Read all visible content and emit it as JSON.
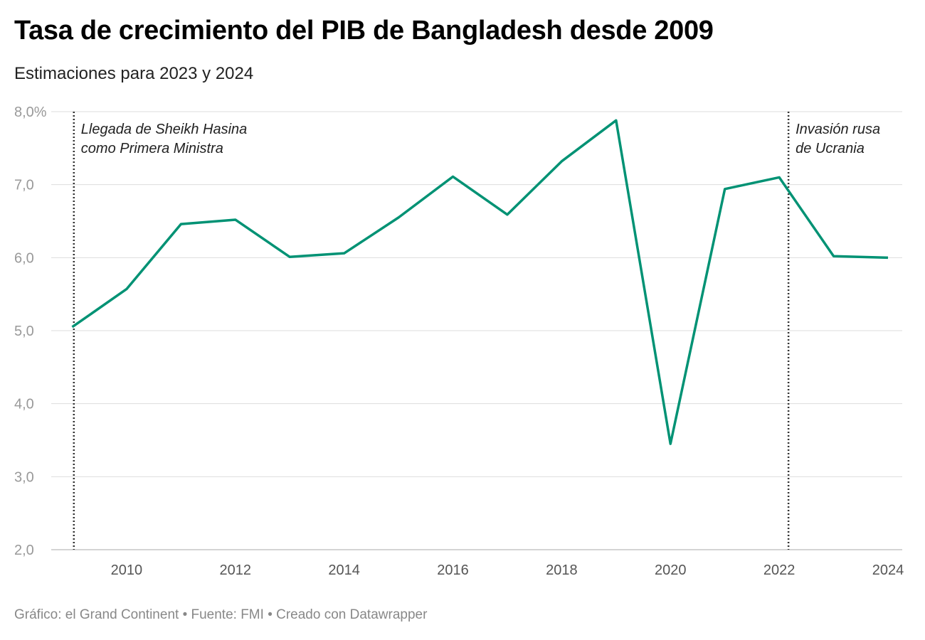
{
  "chart_data": {
    "type": "line",
    "title": "Tasa de crecimiento del PIB de Bangladesh desde 2009",
    "subtitle": "Estimaciones para 2023 y 2024",
    "x": [
      2009,
      2010,
      2011,
      2012,
      2013,
      2014,
      2015,
      2016,
      2017,
      2018,
      2019,
      2020,
      2021,
      2022,
      2023,
      2024
    ],
    "series": [
      {
        "values": [
          5.05,
          5.57,
          6.46,
          6.52,
          6.01,
          6.06,
          6.55,
          7.11,
          6.59,
          7.32,
          7.88,
          3.45,
          6.94,
          7.1,
          6.02,
          6.0
        ],
        "color": "#009274"
      }
    ],
    "ylim": [
      2,
      8
    ],
    "yticks": [
      "8,0%",
      "7,0",
      "6,0",
      "5,0",
      "4,0",
      "3,0",
      "2,0"
    ],
    "ytick_values": [
      8,
      7,
      6,
      5,
      4,
      3,
      2
    ],
    "xticks": [
      2010,
      2012,
      2014,
      2016,
      2018,
      2020,
      2022,
      2024
    ],
    "xlim": [
      2009,
      2024
    ],
    "grid": true,
    "annotations": [
      {
        "x": 2009.03,
        "lines": [
          "Llegada de Sheikh Hasina",
          "como Primera Ministra"
        ]
      },
      {
        "x": 2022.17,
        "lines": [
          "Invasión rusa",
          "de Ucrania"
        ]
      }
    ],
    "footer": "Gráfico: el Grand Continent • Fuente: FMI • Creado con Datawrapper"
  }
}
